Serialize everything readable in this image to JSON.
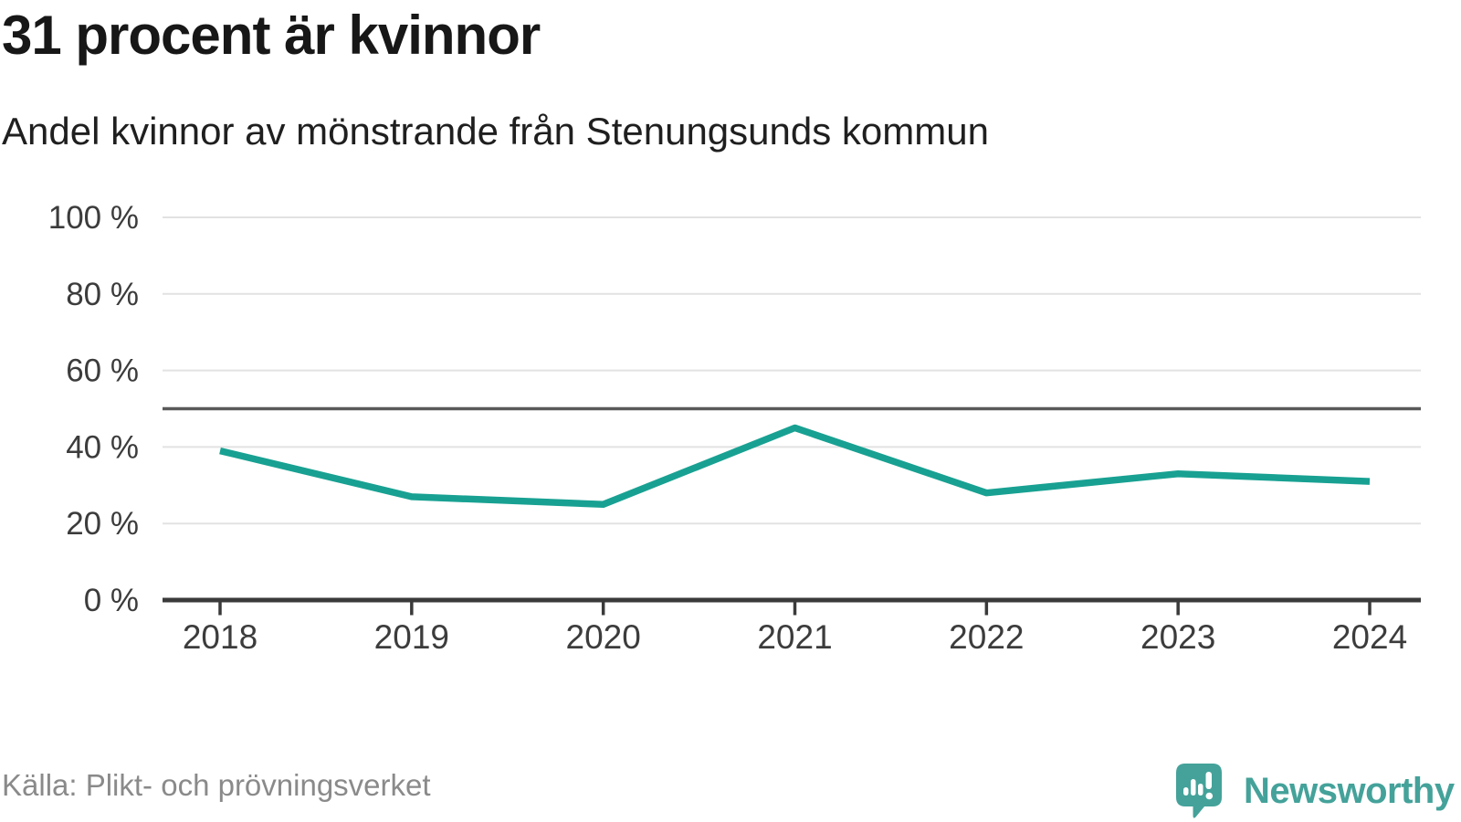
{
  "header": {
    "title": "31 procent är kvinnor",
    "subtitle": "Andel kvinnor av mönstrande från Stenungsunds kommun"
  },
  "footer": {
    "source": "Källa: Plikt- och prövningsverket",
    "brand": "Newsworthy"
  },
  "colors": {
    "line": "#18a192",
    "brand": "#44a29a",
    "grid": "#e2e2e2",
    "reference_line": "#595959",
    "axis": "#3a3a3a",
    "tick_label": "#3c3c3c",
    "title": "#171717",
    "source_text": "#8a8a8a"
  },
  "chart_data": {
    "type": "line",
    "title": "31 procent är kvinnor",
    "subtitle": "Andel kvinnor av mönstrande från Stenungsunds kommun",
    "categories": [
      "2018",
      "2019",
      "2020",
      "2021",
      "2022",
      "2023",
      "2024"
    ],
    "series": [
      {
        "name": "Andel kvinnor av mönstrande",
        "values": [
          39,
          27,
          25,
          45,
          28,
          33,
          31
        ]
      }
    ],
    "unit": "%",
    "ylim": [
      0,
      100
    ],
    "yticks": [
      {
        "value": 0,
        "label": "0 %"
      },
      {
        "value": 20,
        "label": "20 %"
      },
      {
        "value": 40,
        "label": "40 %"
      },
      {
        "value": 60,
        "label": "60 %"
      },
      {
        "value": 80,
        "label": "80 %"
      },
      {
        "value": 100,
        "label": "100 %"
      }
    ],
    "reference_line": 50,
    "grid": true,
    "legend": "none",
    "source": "Källa: Plikt- och prövningsverket"
  }
}
